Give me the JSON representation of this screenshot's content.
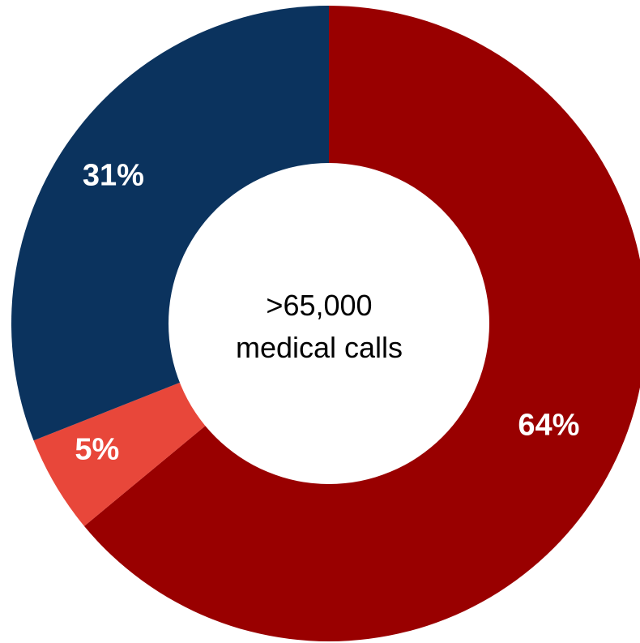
{
  "chart_data": {
    "type": "pie",
    "variant": "donut",
    "slices": [
      {
        "value": 64,
        "label": "64%",
        "color": "#990000"
      },
      {
        "value": 5,
        "label": "5%",
        "color": "#e8473a"
      },
      {
        "value": 31,
        "label": "31%",
        "color": "#0b335e"
      }
    ],
    "start": "top",
    "direction": "clockwise",
    "center_text": [
      ">65,000",
      "medical calls"
    ]
  }
}
